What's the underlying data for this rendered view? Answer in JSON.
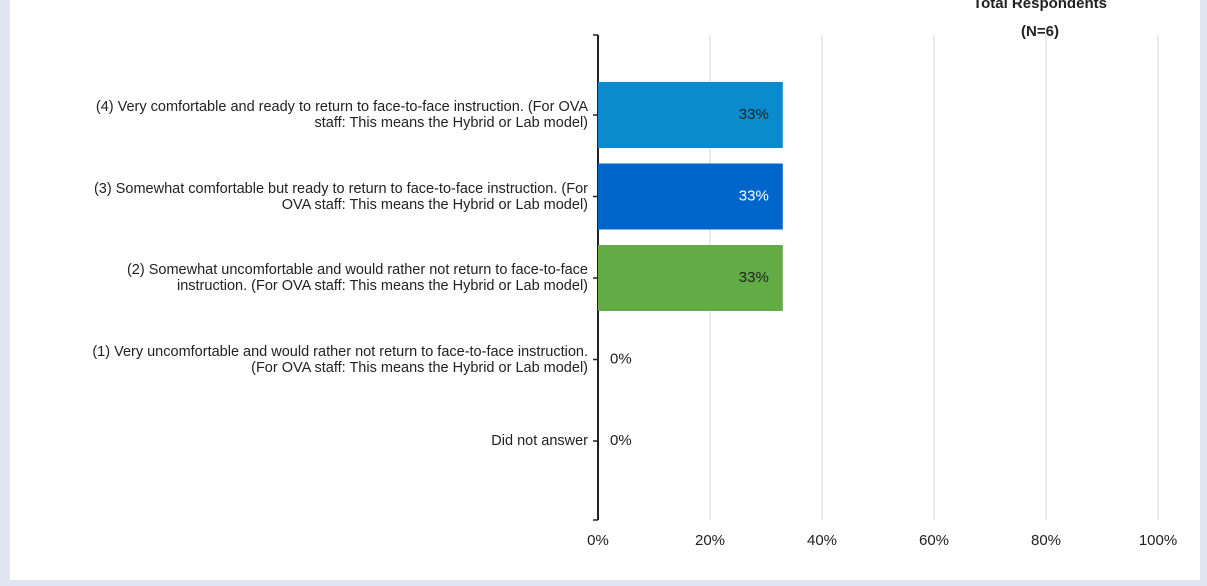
{
  "chart_data": {
    "type": "bar",
    "orientation": "horizontal",
    "title": "Total Respondents",
    "subtitle": "(N=6)",
    "categories": [
      "(4) Very comfortable and ready to return to face-to-face instruction. (For OVA staff: This means the Hybrid or Lab model)",
      "(3) Somewhat comfortable but ready to return to face-to-face instruction. (For OVA staff: This means the Hybrid or Lab model)",
      "(2) Somewhat uncomfortable and would rather not return to face-to-face instruction. (For OVA staff: This means the Hybrid or Lab model)",
      "(1) Very uncomfortable and would rather not return to face-to-face instruction. (For OVA staff: This means the Hybrid or Lab model)",
      "Did not answer"
    ],
    "values": [
      33,
      33,
      33,
      0,
      0
    ],
    "value_labels": [
      "33%",
      "33%",
      "33%",
      "0%",
      "0%"
    ],
    "colors": [
      "#0a8bcd",
      "#0066cc",
      "#62ab45",
      "#62ab45",
      "#62ab45"
    ],
    "label_colors": [
      "#222222",
      "#ffffff",
      "#222222",
      "#222222",
      "#222222"
    ],
    "xlim": [
      0,
      100
    ],
    "xticks": [
      {
        "value": 0,
        "label": "0%"
      },
      {
        "value": 20,
        "label": "20%"
      },
      {
        "value": 40,
        "label": "40%"
      },
      {
        "value": 60,
        "label": "60%"
      },
      {
        "value": 80,
        "label": "80%"
      },
      {
        "value": 100,
        "label": "100%"
      }
    ],
    "grid": true
  }
}
